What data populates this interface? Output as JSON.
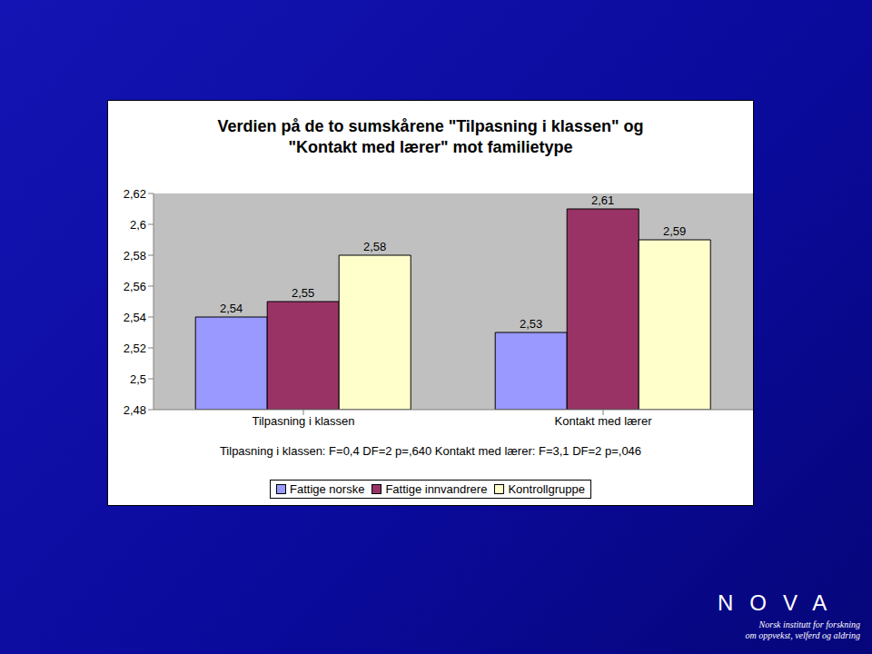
{
  "chart_data": {
    "type": "bar",
    "title": "Verdien på de to sumskårene \"Tilpasning i klassen\" og \"Kontakt med lærer\" mot familietype",
    "categories": [
      "Tilpasning i klassen",
      "Kontakt med lærer"
    ],
    "series": [
      {
        "name": "Fattige norske",
        "color": "#9999ff",
        "values": [
          2.54,
          2.53
        ],
        "value_labels": [
          "2,54",
          "2,53"
        ]
      },
      {
        "name": "Fattige innvandrere",
        "color": "#993366",
        "values": [
          2.55,
          2.61
        ],
        "value_labels": [
          "2,55",
          "2,61"
        ]
      },
      {
        "name": "Kontrollgruppe",
        "color": "#ffffcc",
        "values": [
          2.58,
          2.59
        ],
        "value_labels": [
          "2,58",
          "2,59"
        ]
      }
    ],
    "ylim": [
      2.48,
      2.62
    ],
    "yticks": [
      {
        "value": 2.48,
        "label": "2,48"
      },
      {
        "value": 2.5,
        "label": "2,5"
      },
      {
        "value": 2.52,
        "label": "2,52"
      },
      {
        "value": 2.54,
        "label": "2,54"
      },
      {
        "value": 2.56,
        "label": "2,56"
      },
      {
        "value": 2.58,
        "label": "2,58"
      },
      {
        "value": 2.6,
        "label": "2,6"
      },
      {
        "value": 2.62,
        "label": "2,62"
      }
    ],
    "grid": false,
    "data_labels": true,
    "legend": "bottom",
    "annotations": [
      "Tilpasning i klassen: F=0,4 DF=2 p=,640",
      "Kontakt med lærer: F=3,1 DF=2 p=,046"
    ],
    "logo": {
      "name": "NOVA",
      "tagline": [
        "Norsk institutt for forskning",
        "om oppvekst, velferd og aldring"
      ]
    }
  }
}
